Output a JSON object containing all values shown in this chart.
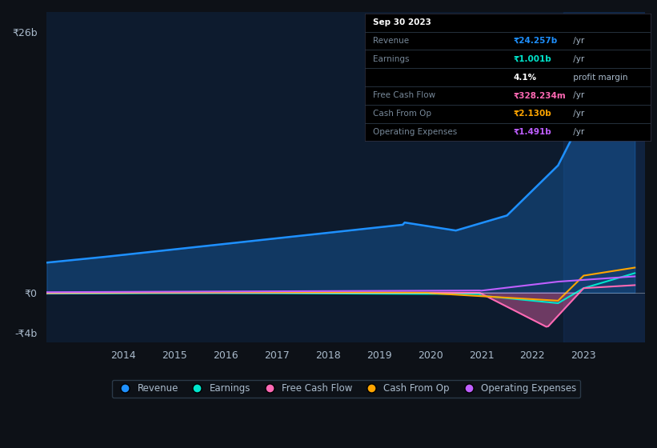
{
  "background_color": "#0d1117",
  "plot_bg_color": "#0d1b2e",
  "y_label_top": "₹26b",
  "y_label_zero": "₹0",
  "y_label_neg": "-₹4b",
  "x_ticks": [
    "2014",
    "2015",
    "2016",
    "2017",
    "2018",
    "2019",
    "2020",
    "2021",
    "2022",
    "2023"
  ],
  "legend_items": [
    {
      "label": "Revenue",
      "color": "#1e90ff"
    },
    {
      "label": "Earnings",
      "color": "#00e5cc"
    },
    {
      "label": "Free Cash Flow",
      "color": "#ff69b4"
    },
    {
      "label": "Cash From Op",
      "color": "#ffa500"
    },
    {
      "label": "Operating Expenses",
      "color": "#bf5fff"
    }
  ],
  "tooltip": {
    "date": "Sep 30 2023",
    "revenue_label": "Revenue",
    "revenue_value": "₹24.257b",
    "revenue_suffix": " /yr",
    "earnings_label": "Earnings",
    "earnings_value": "₹1.001b",
    "earnings_suffix": " /yr",
    "margin_value": "4.1%",
    "margin_suffix": " profit margin",
    "fcf_label": "Free Cash Flow",
    "fcf_value": "₹328.234m",
    "fcf_suffix": " /yr",
    "cashop_label": "Cash From Op",
    "cashop_value": "₹2.130b",
    "cashop_suffix": " /yr",
    "opex_label": "Operating Expenses",
    "opex_value": "₹1.491b",
    "opex_suffix": " /yr"
  },
  "revenue_color": "#1e90ff",
  "earnings_color": "#00e5cc",
  "free_cash_flow_color": "#ff69b4",
  "cash_from_op_color": "#ffa500",
  "operating_expenses_color": "#bf5fff",
  "ylim": [
    -5,
    28
  ],
  "xlim_start": 2012.5,
  "xlim_end": 2024.2
}
